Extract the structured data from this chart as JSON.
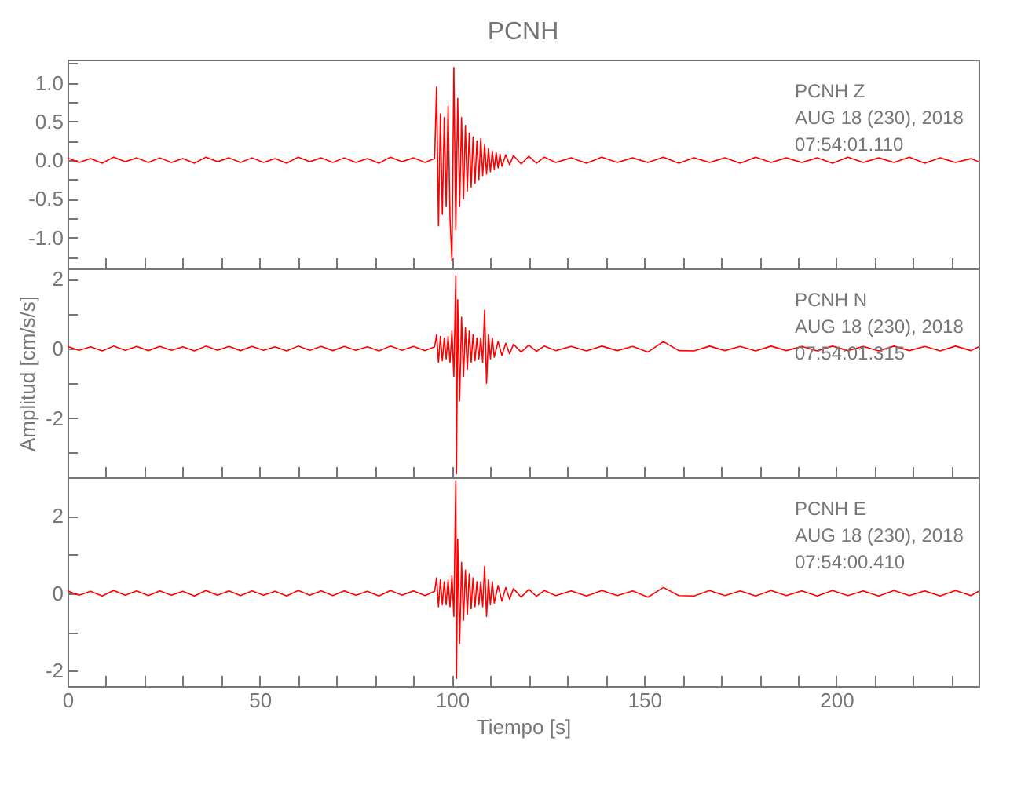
{
  "chart_data": [
    {
      "type": "line",
      "title": "PCNH",
      "color": "#ff0000",
      "tick_labels": "y",
      "grid": false,
      "annotations": [
        "PCNH   Z",
        "AUG 18 (230), 2018",
        "07:54:01.110"
      ],
      "xlim": [
        0,
        237
      ],
      "xticks": [
        0,
        {
          "value": 10,
          "label": null
        },
        {
          "value": 20,
          "label": null
        },
        {
          "value": 30,
          "label": null
        },
        {
          "value": 40,
          "label": null
        },
        50,
        {
          "value": 60,
          "label": null
        },
        {
          "value": 70,
          "label": null
        },
        {
          "value": 80,
          "label": null
        },
        {
          "value": 90,
          "label": null
        },
        100,
        {
          "value": 110,
          "label": null
        },
        {
          "value": 120,
          "label": null
        },
        {
          "value": 130,
          "label": null
        },
        {
          "value": 140,
          "label": null
        },
        150,
        {
          "value": 160,
          "label": null
        },
        {
          "value": 170,
          "label": null
        },
        {
          "value": 180,
          "label": null
        },
        {
          "value": 190,
          "label": null
        },
        200,
        {
          "value": 210,
          "label": null
        },
        {
          "value": 220,
          "label": null
        },
        {
          "value": 230,
          "label": null
        }
      ],
      "ylim": [
        -1.4,
        1.3
      ],
      "yticks": [
        {
          "value": -1.25,
          "label": null
        },
        {
          "value": -1,
          "label": "-1.0"
        },
        {
          "value": -0.75,
          "label": null
        },
        {
          "value": -0.5,
          "label": "-0.5"
        },
        {
          "value": -0.25,
          "label": null
        },
        {
          "value": 0,
          "label": "0.0"
        },
        {
          "value": 0.25,
          "label": null
        },
        {
          "value": 0.5,
          "label": "0.5"
        },
        {
          "value": 0.75,
          "label": null
        },
        {
          "value": 1,
          "label": "1.0"
        },
        {
          "value": 1.25,
          "label": null
        }
      ],
      "x": [
        0,
        3,
        6,
        9,
        12,
        15,
        18,
        21,
        24,
        27,
        30,
        33,
        36,
        39,
        42,
        45,
        48,
        51,
        54,
        57,
        60,
        63,
        66,
        69,
        72,
        75,
        78,
        81,
        84,
        87,
        90,
        93,
        95.5,
        96,
        96.5,
        97,
        97.5,
        98,
        98.5,
        99,
        99.5,
        100,
        100.5,
        101,
        101.5,
        102,
        102.5,
        103,
        103.5,
        104,
        104.5,
        105,
        105.5,
        106,
        106.5,
        107,
        107.5,
        108,
        108.5,
        109,
        109.5,
        110,
        110.5,
        111,
        111.5,
        112,
        112.5,
        113,
        114,
        115,
        116,
        118,
        120,
        122,
        124,
        127,
        131,
        135,
        139,
        143,
        147,
        151,
        155,
        159,
        163,
        167,
        171,
        175,
        179,
        183,
        187,
        191,
        195,
        199,
        203,
        207,
        211,
        215,
        219,
        223,
        227,
        231,
        235,
        237
      ],
      "values": [
        0.03,
        -0.03,
        0.02,
        -0.04,
        0.04,
        -0.02,
        0.03,
        -0.03,
        0.03,
        -0.03,
        0.02,
        -0.04,
        0.04,
        -0.02,
        0.03,
        -0.03,
        0.03,
        -0.03,
        0.02,
        -0.04,
        0.04,
        -0.02,
        0.03,
        -0.03,
        0.03,
        -0.03,
        0.02,
        -0.04,
        0.04,
        -0.02,
        0.03,
        -0.03,
        0.02,
        0.95,
        -0.85,
        0.6,
        -0.7,
        0.55,
        -0.6,
        0.7,
        -0.75,
        -1.3,
        1.2,
        -0.9,
        0.8,
        -0.6,
        0.55,
        -0.5,
        0.45,
        -0.4,
        0.35,
        -0.35,
        0.3,
        -0.3,
        0.25,
        -0.25,
        0.28,
        -0.2,
        0.2,
        -0.18,
        0.15,
        -0.15,
        0.12,
        -0.12,
        0.1,
        -0.1,
        0.08,
        -0.08,
        0.07,
        -0.06,
        0.06,
        -0.05,
        0.05,
        -0.04,
        0.04,
        -0.03,
        0.03,
        -0.04,
        0.04,
        -0.03,
        0.03,
        -0.03,
        0.04,
        -0.04,
        0.03,
        -0.03,
        0.03,
        -0.04,
        0.04,
        -0.03,
        0.03,
        -0.03,
        0.03,
        -0.04,
        0.04,
        -0.03,
        0.03,
        -0.03,
        0.04,
        -0.04,
        0.03,
        -0.03,
        0.02,
        -0.02
      ]
    },
    {
      "type": "line",
      "ylabel": "Amplitud [cm/s/s]",
      "color": "#ff0000",
      "tick_labels": "y",
      "grid": false,
      "annotations": [
        "PCNH   N",
        "AUG 18 (230), 2018",
        "07:54:01.315"
      ],
      "xlim": [
        0,
        237
      ],
      "xticks": [
        0,
        {
          "value": 10,
          "label": null
        },
        {
          "value": 20,
          "label": null
        },
        {
          "value": 30,
          "label": null
        },
        {
          "value": 40,
          "label": null
        },
        50,
        {
          "value": 60,
          "label": null
        },
        {
          "value": 70,
          "label": null
        },
        {
          "value": 80,
          "label": null
        },
        {
          "value": 90,
          "label": null
        },
        100,
        {
          "value": 110,
          "label": null
        },
        {
          "value": 120,
          "label": null
        },
        {
          "value": 130,
          "label": null
        },
        {
          "value": 140,
          "label": null
        },
        150,
        {
          "value": 160,
          "label": null
        },
        {
          "value": 170,
          "label": null
        },
        {
          "value": 180,
          "label": null
        },
        {
          "value": 190,
          "label": null
        },
        200,
        {
          "value": 210,
          "label": null
        },
        {
          "value": 220,
          "label": null
        },
        {
          "value": 230,
          "label": null
        }
      ],
      "ylim": [
        -3.7,
        2.3
      ],
      "yticks": [
        {
          "value": -3,
          "label": null
        },
        -2,
        {
          "value": -1,
          "label": null
        },
        0,
        {
          "value": 1,
          "label": null
        },
        2
      ],
      "x": [
        0,
        3,
        6,
        9,
        12,
        15,
        18,
        21,
        24,
        27,
        30,
        33,
        36,
        39,
        42,
        45,
        48,
        51,
        54,
        57,
        60,
        63,
        66,
        69,
        72,
        75,
        78,
        81,
        84,
        87,
        90,
        93,
        95.5,
        96,
        96.5,
        97,
        97.5,
        98,
        98.5,
        99,
        99.5,
        100,
        100.5,
        101,
        101.2,
        101.5,
        102,
        102.5,
        103,
        103.5,
        104,
        104.5,
        105,
        105.5,
        106,
        106.5,
        107,
        107.5,
        108,
        108.5,
        109,
        109.5,
        110,
        110.5,
        111,
        112,
        113,
        114,
        115,
        116,
        118,
        120,
        122,
        124,
        127,
        131,
        135,
        139,
        143,
        147,
        151,
        155,
        159,
        163,
        167,
        171,
        175,
        179,
        183,
        187,
        191,
        195,
        199,
        203,
        207,
        211,
        215,
        219,
        223,
        227,
        231,
        235,
        237
      ],
      "values": [
        0.06,
        -0.05,
        0.05,
        -0.07,
        0.07,
        -0.05,
        0.06,
        -0.06,
        0.06,
        -0.05,
        0.05,
        -0.07,
        0.07,
        -0.05,
        0.06,
        -0.06,
        0.06,
        -0.05,
        0.05,
        -0.07,
        0.07,
        -0.05,
        0.06,
        -0.06,
        0.06,
        -0.05,
        0.05,
        -0.07,
        0.07,
        -0.05,
        0.06,
        -0.06,
        0.05,
        0.4,
        -0.4,
        0.35,
        -0.35,
        0.3,
        -0.3,
        0.35,
        -0.4,
        0.5,
        -0.8,
        2.1,
        -3.6,
        1.4,
        -1.5,
        0.9,
        -0.8,
        0.6,
        -0.6,
        0.5,
        -0.4,
        0.4,
        -0.35,
        0.3,
        -0.3,
        0.3,
        -0.4,
        1.1,
        -1.0,
        0.4,
        -0.3,
        0.3,
        -0.25,
        0.2,
        -0.2,
        0.15,
        -0.15,
        0.12,
        -0.1,
        0.1,
        -0.08,
        0.07,
        -0.06,
        0.06,
        -0.07,
        0.07,
        -0.06,
        0.06,
        -0.1,
        0.2,
        -0.06,
        -0.07,
        0.07,
        -0.06,
        0.06,
        -0.07,
        0.07,
        -0.06,
        0.06,
        -0.07,
        0.07,
        -0.06,
        0.06,
        -0.07,
        0.07,
        -0.06,
        0.06,
        -0.07,
        0.07,
        -0.06,
        0.05
      ]
    },
    {
      "type": "line",
      "xlabel": "Tiempo [s]",
      "color": "#ff0000",
      "grid": false,
      "annotations": [
        "PCNH   E",
        "AUG 18 (230), 2018",
        "07:54:00.410"
      ],
      "xlim": [
        0,
        237
      ],
      "xticks": [
        0,
        {
          "value": 10,
          "label": null
        },
        {
          "value": 20,
          "label": null
        },
        {
          "value": 30,
          "label": null
        },
        {
          "value": 40,
          "label": null
        },
        50,
        {
          "value": 60,
          "label": null
        },
        {
          "value": 70,
          "label": null
        },
        {
          "value": 80,
          "label": null
        },
        {
          "value": 90,
          "label": null
        },
        100,
        {
          "value": 110,
          "label": null
        },
        {
          "value": 120,
          "label": null
        },
        {
          "value": 130,
          "label": null
        },
        {
          "value": 140,
          "label": null
        },
        150,
        {
          "value": 160,
          "label": null
        },
        {
          "value": 170,
          "label": null
        },
        {
          "value": 180,
          "label": null
        },
        {
          "value": 190,
          "label": null
        },
        200,
        {
          "value": 210,
          "label": null
        },
        {
          "value": 220,
          "label": null
        },
        {
          "value": 230,
          "label": null
        }
      ],
      "ylim": [
        -2.4,
        3.0
      ],
      "yticks": [
        -2,
        {
          "value": -1,
          "label": null
        },
        0,
        {
          "value": 1,
          "label": null
        },
        2
      ],
      "x": [
        0,
        3,
        6,
        9,
        12,
        15,
        18,
        21,
        24,
        27,
        30,
        33,
        36,
        39,
        42,
        45,
        48,
        51,
        54,
        57,
        60,
        63,
        66,
        69,
        72,
        75,
        78,
        81,
        84,
        87,
        90,
        93,
        95.5,
        96,
        96.5,
        97,
        97.5,
        98,
        98.5,
        99,
        99.5,
        100,
        100.5,
        101,
        101.2,
        101.5,
        102,
        102.5,
        103,
        103.5,
        104,
        104.5,
        105,
        105.5,
        106,
        106.5,
        107,
        107.5,
        108,
        108.5,
        109,
        109.5,
        110,
        110.5,
        111,
        112,
        113,
        114,
        115,
        116,
        118,
        120,
        122,
        124,
        127,
        131,
        135,
        139,
        143,
        147,
        151,
        155,
        159,
        163,
        167,
        171,
        175,
        179,
        183,
        187,
        191,
        195,
        199,
        203,
        207,
        211,
        215,
        219,
        223,
        227,
        231,
        235,
        237
      ],
      "values": [
        0.06,
        -0.05,
        0.05,
        -0.07,
        0.07,
        -0.05,
        0.06,
        -0.06,
        0.06,
        -0.05,
        0.05,
        -0.07,
        0.07,
        -0.05,
        0.06,
        -0.06,
        0.06,
        -0.05,
        0.05,
        -0.07,
        0.07,
        -0.05,
        0.06,
        -0.06,
        0.06,
        -0.05,
        0.05,
        -0.07,
        0.07,
        -0.05,
        0.06,
        -0.06,
        0.05,
        0.4,
        -0.35,
        0.35,
        -0.3,
        0.3,
        -0.3,
        0.35,
        -0.35,
        0.45,
        -0.6,
        2.9,
        -2.2,
        1.4,
        -1.3,
        0.8,
        -0.7,
        0.6,
        -0.55,
        0.5,
        -0.4,
        0.4,
        -0.35,
        0.3,
        -0.3,
        0.3,
        -0.35,
        0.7,
        -0.6,
        0.35,
        -0.3,
        0.3,
        -0.25,
        0.2,
        -0.2,
        0.15,
        -0.15,
        0.12,
        -0.1,
        0.1,
        -0.08,
        0.07,
        -0.06,
        0.06,
        -0.07,
        0.07,
        -0.06,
        0.06,
        -0.1,
        0.15,
        -0.06,
        -0.07,
        0.07,
        -0.06,
        0.06,
        -0.07,
        0.07,
        -0.06,
        0.06,
        -0.07,
        0.07,
        -0.06,
        0.06,
        -0.07,
        0.07,
        -0.06,
        0.06,
        -0.07,
        0.07,
        -0.06,
        0.05
      ]
    }
  ]
}
